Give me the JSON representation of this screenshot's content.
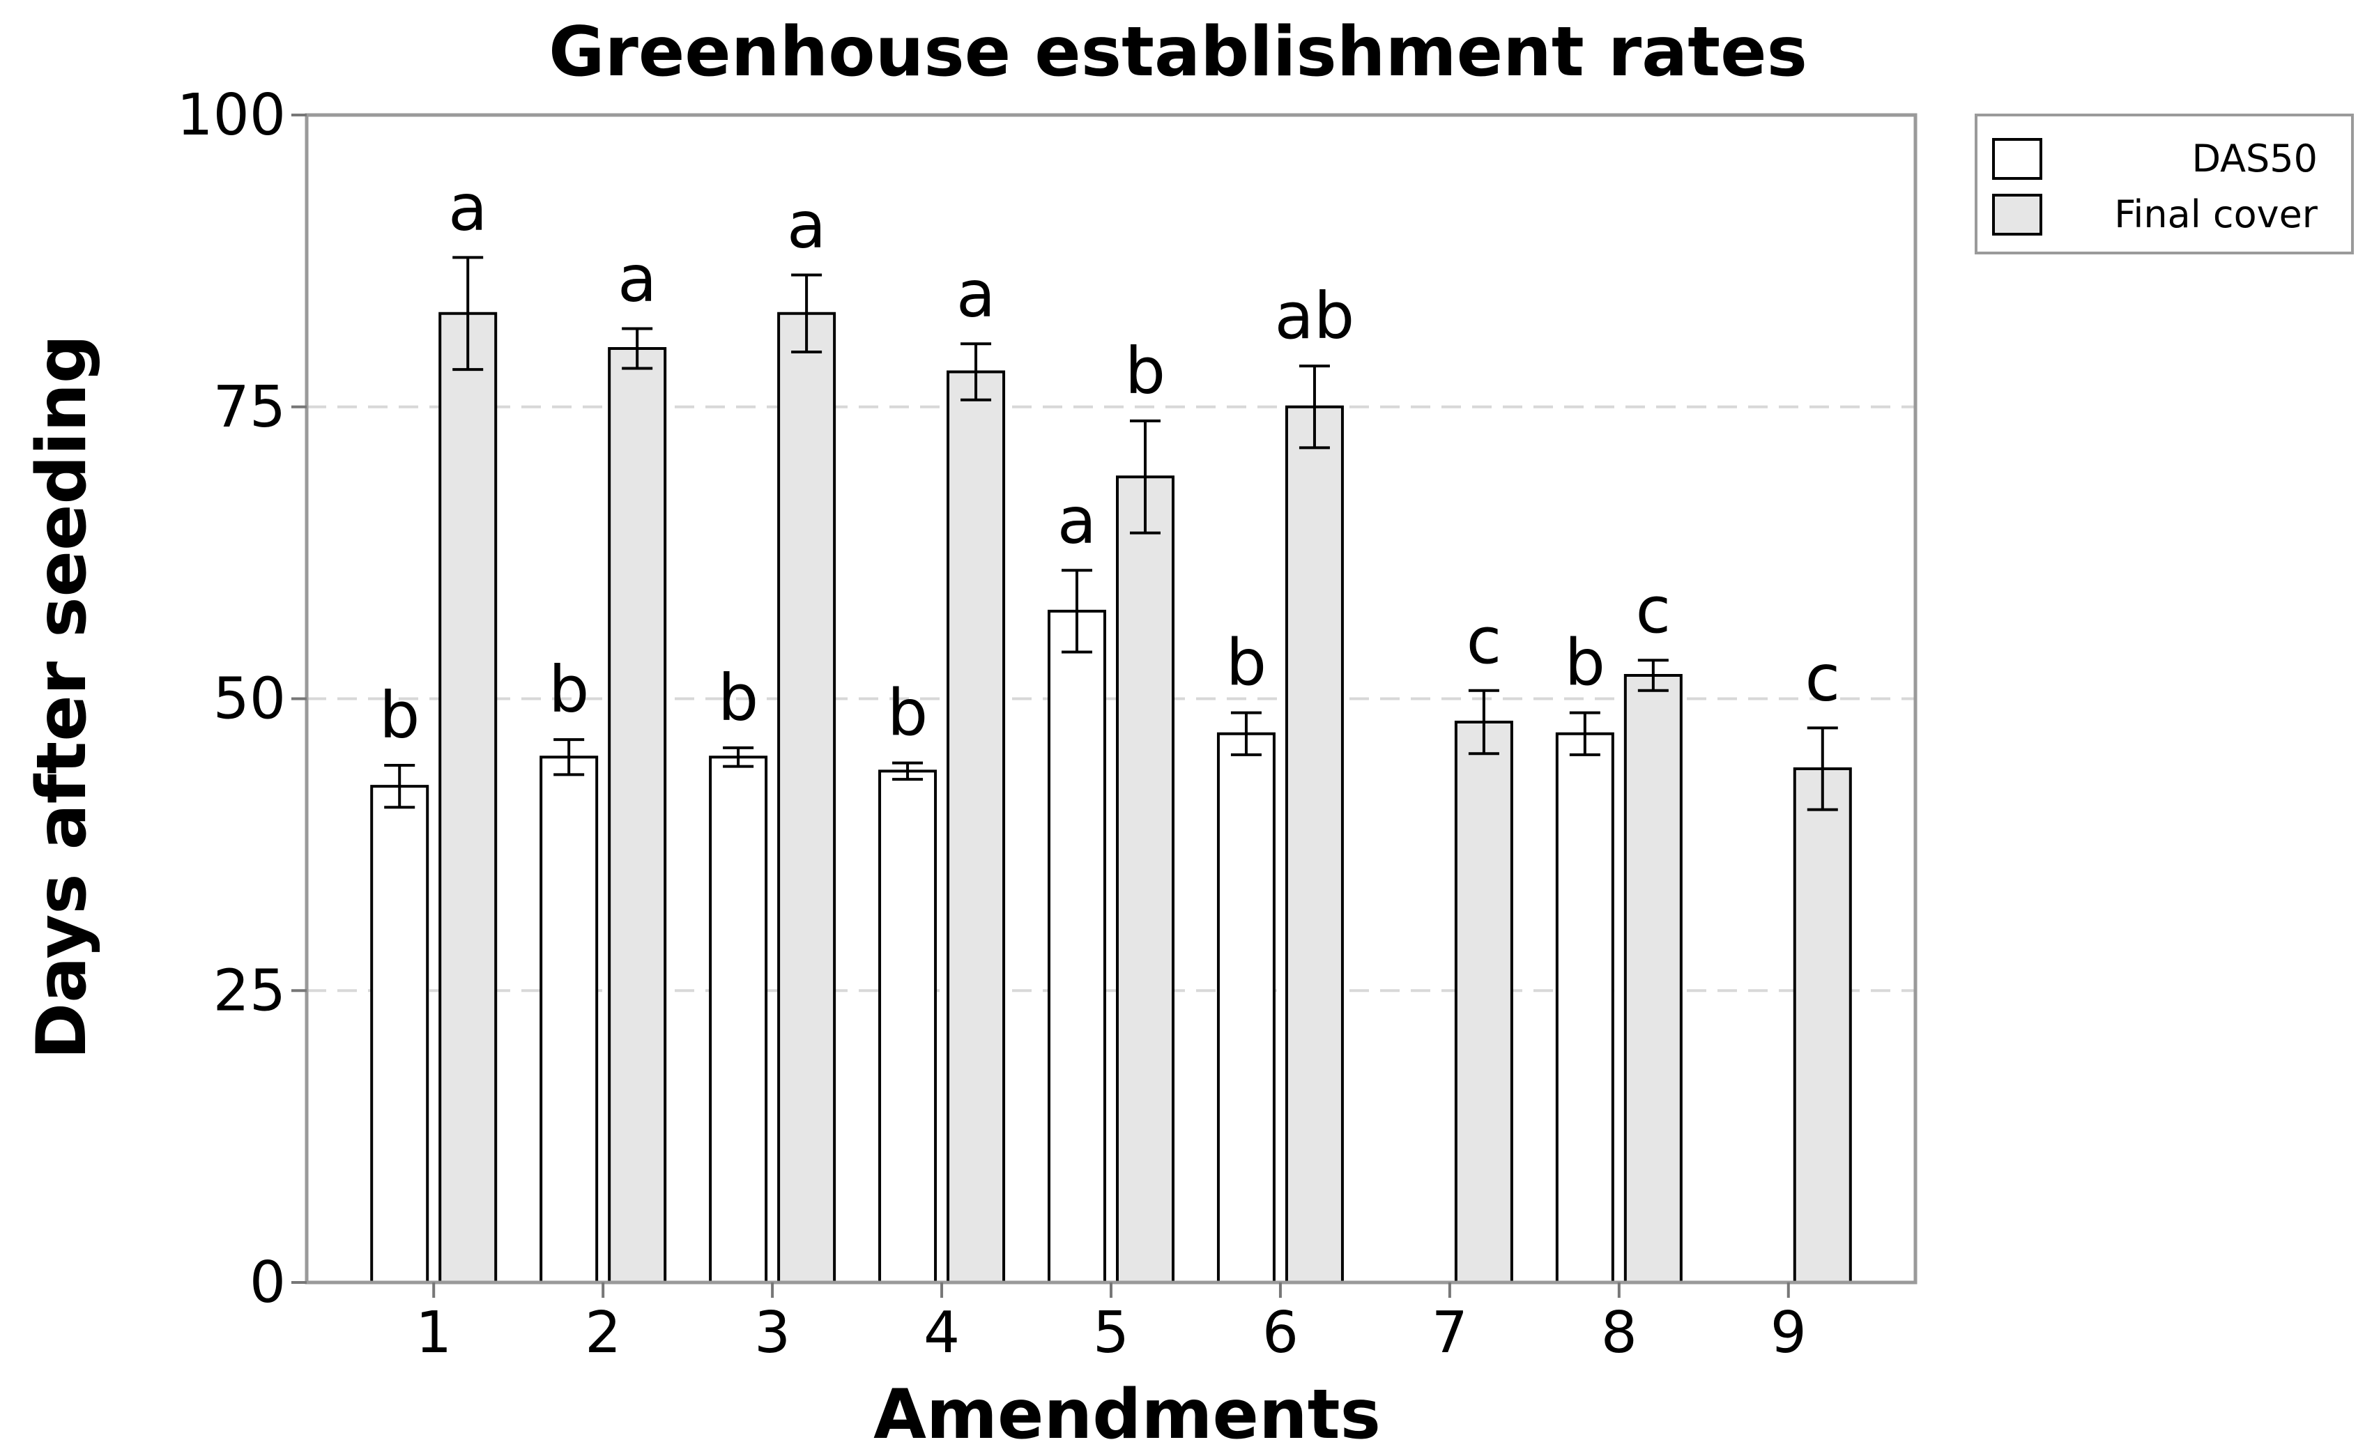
{
  "chart_data": {
    "type": "bar",
    "title": "Greenhouse establishment rates",
    "xlabel": "Amendments",
    "ylabel": "Days after seeding",
    "ylim": [
      0,
      100
    ],
    "yticks": [
      0,
      25,
      50,
      75,
      100
    ],
    "grid": "horizontal dashed",
    "legend_position": "top-right outside",
    "categories": [
      "1",
      "2",
      "3",
      "4",
      "5",
      "6",
      "7",
      "8",
      "9"
    ],
    "series": [
      {
        "name": "DAS50",
        "color": "#ffffff",
        "values": [
          42.5,
          45,
          45,
          43.8,
          57.5,
          47,
          null,
          47,
          null
        ],
        "errors": [
          1.8,
          1.5,
          0.8,
          0.7,
          3.5,
          1.8,
          null,
          1.8,
          null
        ],
        "labels": [
          "b",
          "b",
          "b",
          "b",
          "a",
          "b",
          "",
          "b",
          ""
        ]
      },
      {
        "name": "Final cover",
        "color": "#e6e6e6",
        "values": [
          83,
          80,
          83,
          78,
          69,
          75,
          48,
          52,
          44
        ],
        "errors": [
          4.8,
          1.7,
          3.3,
          2.4,
          4.8,
          3.5,
          2.7,
          1.3,
          3.5
        ],
        "labels": [
          "a",
          "a",
          "a",
          "a",
          "b",
          "ab",
          "c",
          "c",
          "c"
        ]
      }
    ]
  }
}
